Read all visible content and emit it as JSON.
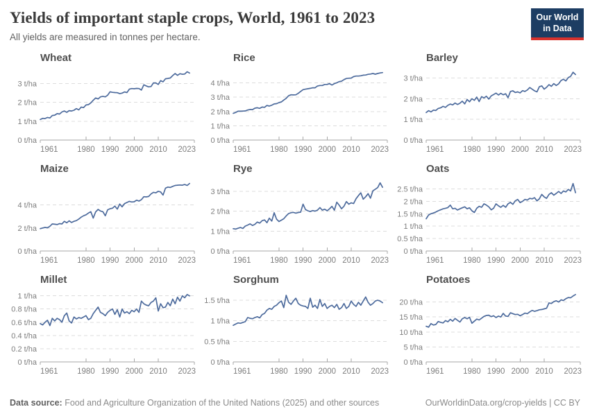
{
  "header": {
    "title": "Yields of important staple crops, World, 1961 to 2023",
    "subtitle": "All yields are measured in tonnes per hectare.",
    "logo": {
      "line1": "Our World",
      "line2": "in Data"
    }
  },
  "footer": {
    "source_label": "Data source:",
    "source_text": " Food and Agriculture Organization of the United Nations (2025) and other sources",
    "credit": "OurWorldinData.org/crop-yields | CC BY"
  },
  "colors": {
    "line": "#4c6a9c",
    "grid": "#dcdcdc",
    "axis": "#a6a6a6",
    "tick_text": "#7d7d7d",
    "logo_bg": "#1d3d63",
    "logo_red": "#d8322d"
  },
  "chart_data": [
    {
      "type": "line",
      "title": "Wheat",
      "unit": "t/ha",
      "x_start": 1961,
      "x_end": 2023,
      "x_axis_max": 2025,
      "xticks": [
        1961,
        1980,
        1990,
        2000,
        2010,
        2023
      ],
      "yticks": [
        0,
        1,
        2,
        3
      ],
      "ytick_labels": [
        "0 t/ha",
        "1 t/ha",
        "2 t/ha",
        "3 t/ha"
      ],
      "y_axis_max": 3.75,
      "values": [
        1.09,
        1.15,
        1.14,
        1.2,
        1.17,
        1.3,
        1.32,
        1.4,
        1.38,
        1.49,
        1.54,
        1.47,
        1.56,
        1.54,
        1.58,
        1.67,
        1.6,
        1.75,
        1.72,
        1.86,
        1.88,
        1.97,
        2.11,
        2.23,
        2.18,
        2.29,
        2.32,
        2.29,
        2.38,
        2.56,
        2.53,
        2.52,
        2.51,
        2.46,
        2.49,
        2.55,
        2.52,
        2.7,
        2.73,
        2.72,
        2.74,
        2.73,
        2.65,
        2.93,
        2.87,
        2.82,
        2.84,
        3.03,
        3.03,
        2.95,
        3.15,
        3.09,
        3.25,
        3.27,
        3.29,
        3.42,
        3.53,
        3.43,
        3.52,
        3.49,
        3.5,
        3.62,
        3.55
      ]
    },
    {
      "type": "line",
      "title": "Rice",
      "unit": "t/ha",
      "x_start": 1961,
      "x_end": 2023,
      "x_axis_max": 2025,
      "xticks": [
        1961,
        1980,
        1990,
        2000,
        2010,
        2023
      ],
      "yticks": [
        0,
        1,
        2,
        3,
        4
      ],
      "ytick_labels": [
        "0 t/ha",
        "1 t/ha",
        "2 t/ha",
        "3 t/ha",
        "4 t/ha"
      ],
      "y_axis_max": 4.95,
      "values": [
        1.87,
        1.93,
        2.02,
        2.02,
        2.03,
        2.04,
        2.1,
        2.14,
        2.13,
        2.23,
        2.26,
        2.22,
        2.31,
        2.29,
        2.42,
        2.38,
        2.44,
        2.53,
        2.55,
        2.62,
        2.67,
        2.8,
        2.92,
        3.1,
        3.17,
        3.16,
        3.17,
        3.27,
        3.4,
        3.53,
        3.56,
        3.59,
        3.62,
        3.66,
        3.66,
        3.78,
        3.82,
        3.82,
        3.89,
        3.89,
        3.95,
        3.85,
        3.95,
        4.01,
        4.09,
        4.12,
        4.23,
        4.31,
        4.33,
        4.34,
        4.44,
        4.48,
        4.48,
        4.5,
        4.54,
        4.55,
        4.6,
        4.62,
        4.66,
        4.61,
        4.66,
        4.7,
        4.72
      ]
    },
    {
      "type": "line",
      "title": "Barley",
      "unit": "t/ha",
      "x_start": 1961,
      "x_end": 2023,
      "x_axis_max": 2025,
      "xticks": [
        1961,
        1980,
        1990,
        2000,
        2010,
        2023
      ],
      "yticks": [
        0,
        1,
        2,
        3
      ],
      "ytick_labels": [
        "0 t/ha",
        "1 t/ha",
        "2 t/ha",
        "3 t/ha"
      ],
      "y_axis_max": 3.42,
      "values": [
        1.33,
        1.42,
        1.36,
        1.45,
        1.43,
        1.53,
        1.56,
        1.63,
        1.58,
        1.68,
        1.74,
        1.7,
        1.79,
        1.72,
        1.78,
        1.88,
        1.75,
        1.96,
        1.85,
        2.0,
        1.92,
        2.08,
        1.86,
        2.1,
        2.04,
        2.12,
        1.98,
        2.14,
        2.2,
        2.27,
        2.18,
        2.26,
        2.19,
        2.24,
        2.05,
        2.35,
        2.38,
        2.3,
        2.33,
        2.28,
        2.39,
        2.35,
        2.42,
        2.54,
        2.46,
        2.38,
        2.33,
        2.58,
        2.62,
        2.46,
        2.55,
        2.68,
        2.6,
        2.73,
        2.64,
        2.72,
        2.88,
        2.94,
        2.86,
        3.02,
        3.08,
        3.28,
        3.17
      ]
    },
    {
      "type": "line",
      "title": "Maize",
      "unit": "t/ha",
      "x_start": 1961,
      "x_end": 2023,
      "x_axis_max": 2025,
      "xticks": [
        1961,
        1980,
        1990,
        2000,
        2010,
        2023
      ],
      "yticks": [
        0,
        2,
        4
      ],
      "ytick_labels": [
        "0 t/ha",
        "2 t/ha",
        "4 t/ha"
      ],
      "y_axis_max": 6.15,
      "values": [
        1.94,
        2.0,
        2.05,
        2.02,
        2.15,
        2.35,
        2.33,
        2.3,
        2.38,
        2.35,
        2.58,
        2.45,
        2.62,
        2.48,
        2.58,
        2.64,
        2.78,
        2.94,
        3.06,
        3.15,
        3.3,
        3.42,
        2.86,
        3.4,
        3.62,
        3.48,
        3.42,
        3.06,
        3.58,
        3.68,
        3.72,
        3.9,
        3.64,
        4.08,
        3.84,
        4.12,
        4.22,
        4.32,
        4.26,
        4.28,
        4.42,
        4.34,
        4.46,
        4.72,
        4.7,
        4.74,
        4.96,
        5.1,
        5.06,
        5.19,
        5.14,
        4.86,
        5.46,
        5.56,
        5.52,
        5.62,
        5.7,
        5.72,
        5.74,
        5.72,
        5.78,
        5.7,
        5.87
      ]
    },
    {
      "type": "line",
      "title": "Rye",
      "unit": "t/ha",
      "x_start": 1961,
      "x_end": 2023,
      "x_axis_max": 2025,
      "xticks": [
        1961,
        1980,
        1990,
        2000,
        2010,
        2023
      ],
      "yticks": [
        0,
        1,
        2,
        3
      ],
      "ytick_labels": [
        "0 t/ha",
        "1 t/ha",
        "2 t/ha",
        "3 t/ha"
      ],
      "y_axis_max": 3.55,
      "values": [
        1.12,
        1.1,
        1.14,
        1.18,
        1.13,
        1.25,
        1.3,
        1.36,
        1.28,
        1.34,
        1.45,
        1.4,
        1.52,
        1.56,
        1.42,
        1.65,
        1.5,
        1.92,
        1.6,
        1.48,
        1.55,
        1.62,
        1.76,
        1.88,
        1.92,
        1.94,
        1.9,
        1.93,
        1.95,
        2.35,
        2.08,
        2.02,
        1.98,
        2.03,
        2.0,
        2.05,
        2.18,
        2.05,
        2.1,
        2.02,
        2.12,
        2.24,
        2.05,
        2.45,
        2.3,
        2.12,
        2.25,
        2.48,
        2.35,
        2.42,
        2.38,
        2.62,
        2.78,
        2.92,
        2.6,
        2.72,
        2.88,
        2.65,
        3.02,
        3.1,
        3.18,
        3.42,
        3.2
      ]
    },
    {
      "type": "line",
      "title": "Oats",
      "unit": "t/ha",
      "x_start": 1961,
      "x_end": 2023,
      "x_axis_max": 2025,
      "xticks": [
        1961,
        1980,
        1990,
        2000,
        2010,
        2023
      ],
      "yticks": [
        0,
        0.5,
        1,
        1.5,
        2,
        2.5
      ],
      "ytick_labels": [
        "0 t/ha",
        "0.5 t/ha",
        "1 t/ha",
        "1.5 t/ha",
        "2 t/ha",
        "2.5 t/ha"
      ],
      "y_axis_max": 2.85,
      "values": [
        1.3,
        1.45,
        1.5,
        1.53,
        1.57,
        1.62,
        1.66,
        1.7,
        1.72,
        1.75,
        1.85,
        1.7,
        1.72,
        1.65,
        1.7,
        1.74,
        1.78,
        1.7,
        1.74,
        1.62,
        1.55,
        1.72,
        1.8,
        1.76,
        1.9,
        1.85,
        1.78,
        1.66,
        1.72,
        1.9,
        1.82,
        1.76,
        1.84,
        1.76,
        1.9,
        1.96,
        1.88,
        2.02,
        2.08,
        1.95,
        2.0,
        2.08,
        2.05,
        2.12,
        2.1,
        2.15,
        2.02,
        2.1,
        2.28,
        2.18,
        2.12,
        2.28,
        2.35,
        2.25,
        2.32,
        2.4,
        2.32,
        2.42,
        2.38,
        2.48,
        2.42,
        2.72,
        2.35
      ]
    },
    {
      "type": "line",
      "title": "Millet",
      "unit": "t/ha",
      "x_start": 1961,
      "x_end": 2023,
      "x_axis_max": 2025,
      "xticks": [
        1961,
        1980,
        1990,
        2000,
        2010,
        2023
      ],
      "yticks": [
        0,
        0.2,
        0.4,
        0.6,
        0.8,
        1
      ],
      "ytick_labels": [
        "0 t/ha",
        "0.2 t/ha",
        "0.4 t/ha",
        "0.6 t/ha",
        "0.8 t/ha",
        "1 t/ha"
      ],
      "y_axis_max": 1.07,
      "values": [
        0.58,
        0.56,
        0.6,
        0.63,
        0.55,
        0.66,
        0.62,
        0.66,
        0.64,
        0.6,
        0.7,
        0.74,
        0.62,
        0.59,
        0.68,
        0.65,
        0.67,
        0.66,
        0.68,
        0.7,
        0.64,
        0.66,
        0.73,
        0.78,
        0.83,
        0.75,
        0.73,
        0.7,
        0.75,
        0.78,
        0.8,
        0.72,
        0.79,
        0.68,
        0.8,
        0.74,
        0.76,
        0.73,
        0.78,
        0.76,
        0.8,
        0.75,
        0.92,
        0.88,
        0.86,
        0.85,
        0.9,
        0.92,
        0.97,
        0.77,
        0.88,
        0.82,
        0.83,
        0.9,
        0.85,
        0.95,
        0.88,
        0.98,
        0.92,
        1.0,
        0.97,
        1.02,
        1.0
      ]
    },
    {
      "type": "line",
      "title": "Sorghum",
      "unit": "t/ha",
      "x_start": 1961,
      "x_end": 2023,
      "x_axis_max": 2025,
      "xticks": [
        1961,
        1980,
        1990,
        2000,
        2010,
        2023
      ],
      "yticks": [
        0,
        0.5,
        1,
        1.5
      ],
      "ytick_labels": [
        "0 t/ha",
        "0.5 t/ha",
        "1 t/ha",
        "1.5 t/ha"
      ],
      "y_axis_max": 1.72,
      "values": [
        0.89,
        0.92,
        0.95,
        0.94,
        0.96,
        0.98,
        1.08,
        1.06,
        1.05,
        1.08,
        1.1,
        1.07,
        1.15,
        1.18,
        1.26,
        1.3,
        1.28,
        1.35,
        1.38,
        1.44,
        1.48,
        1.32,
        1.62,
        1.45,
        1.4,
        1.48,
        1.55,
        1.42,
        1.38,
        1.36,
        1.35,
        1.3,
        1.55,
        1.33,
        1.38,
        1.3,
        1.52,
        1.35,
        1.42,
        1.3,
        1.35,
        1.38,
        1.32,
        1.4,
        1.28,
        1.32,
        1.42,
        1.3,
        1.35,
        1.48,
        1.4,
        1.35,
        1.45,
        1.38,
        1.48,
        1.58,
        1.45,
        1.38,
        1.42,
        1.48,
        1.5,
        1.48,
        1.44
      ]
    },
    {
      "type": "line",
      "title": "Potatoes",
      "unit": "t/ha",
      "x_start": 1961,
      "x_end": 2023,
      "x_axis_max": 2025,
      "xticks": [
        1961,
        1980,
        1990,
        2000,
        2010,
        2023
      ],
      "yticks": [
        0,
        5,
        10,
        15,
        20
      ],
      "ytick_labels": [
        "0 t/ha",
        "5 t/ha",
        "10 t/ha",
        "15 t/ha",
        "20 t/ha"
      ],
      "y_axis_max": 23.6,
      "values": [
        11.9,
        11.6,
        12.8,
        12.3,
        12.5,
        13.5,
        13.2,
        13.0,
        13.8,
        13.4,
        14.2,
        13.6,
        14.5,
        13.9,
        13.3,
        14.4,
        14.8,
        14.4,
        14.9,
        12.9,
        13.6,
        14.3,
        14.0,
        14.6,
        15.2,
        15.5,
        15.6,
        15.1,
        15.4,
        14.8,
        15.3,
        15.0,
        16.2,
        15.3,
        15.2,
        16.4,
        16.1,
        15.8,
        15.9,
        15.4,
        15.8,
        16.3,
        16.1,
        16.7,
        17.2,
        16.9,
        17.1,
        17.4,
        17.5,
        17.7,
        17.9,
        19.7,
        19.5,
        20.1,
        20.4,
        20.0,
        20.7,
        20.5,
        21.1,
        21.5,
        21.4,
        22.0,
        22.5
      ]
    }
  ]
}
